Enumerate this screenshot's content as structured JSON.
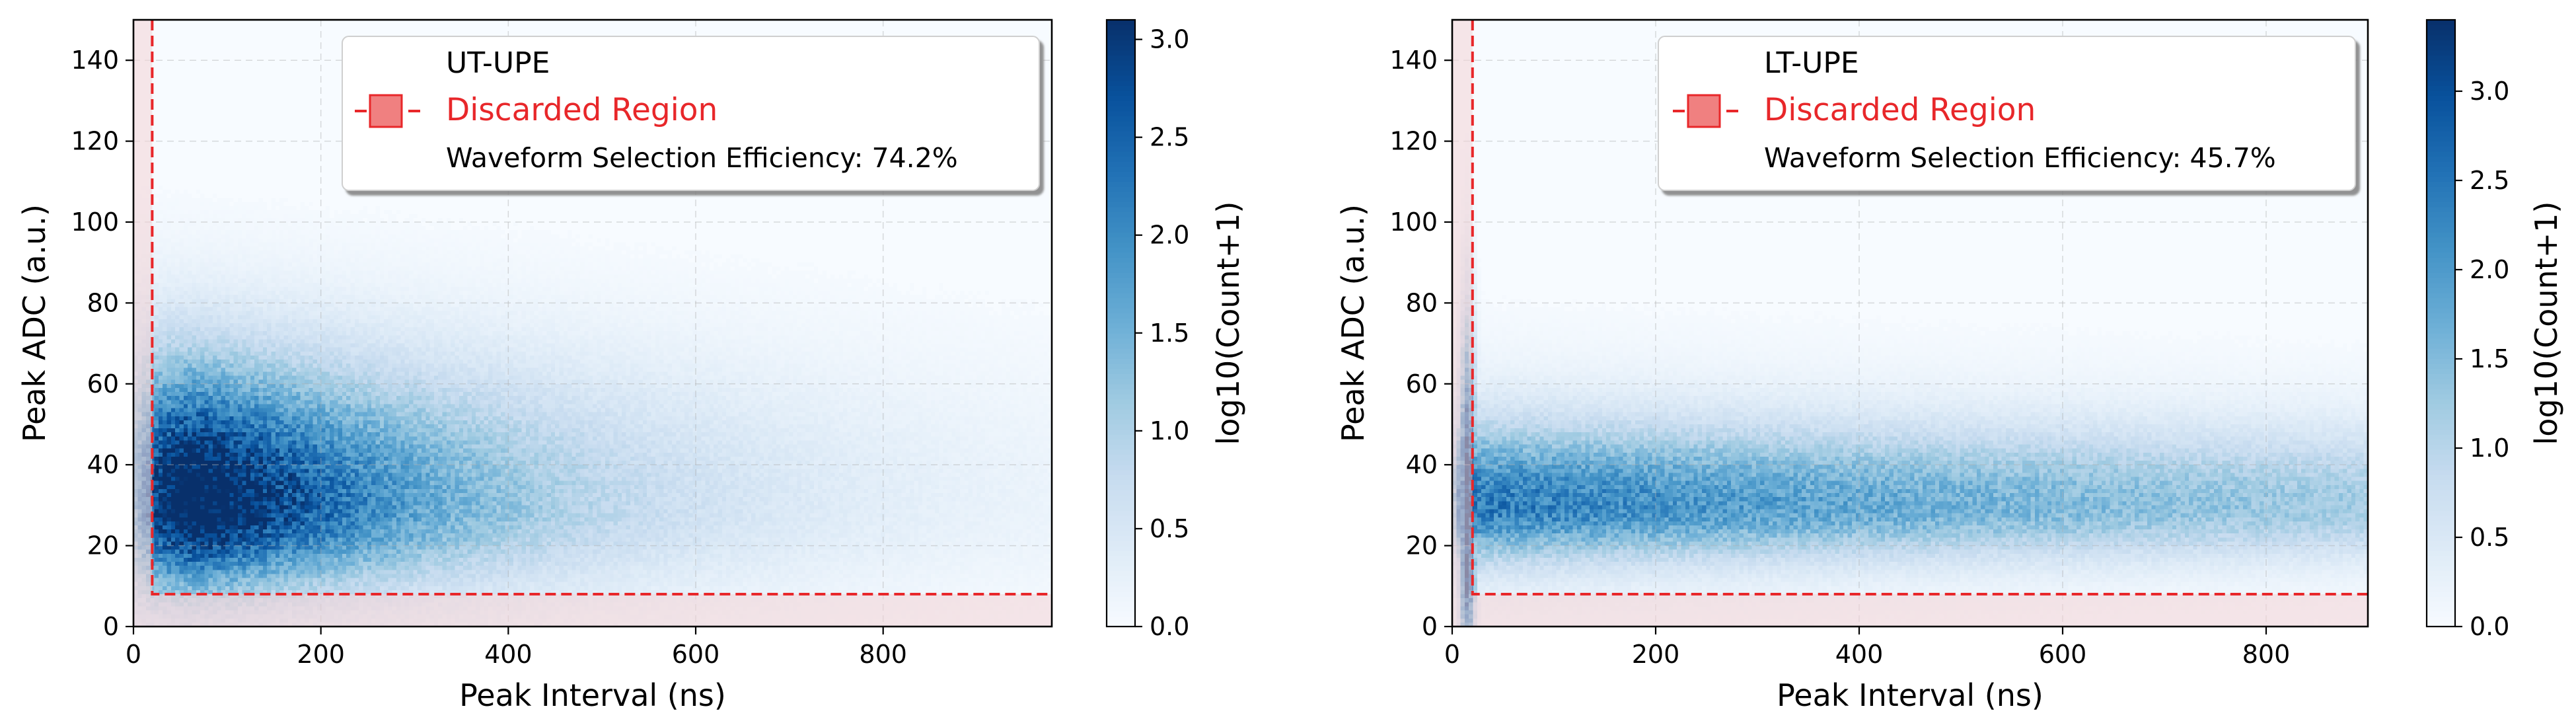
{
  "figure": {
    "background": "#ffffff"
  },
  "colormap": {
    "name": "Blues",
    "stops": [
      "#f7fbff",
      "#deebf7",
      "#c6dbef",
      "#9ecae1",
      "#6baed6",
      "#4292c6",
      "#2171b5",
      "#08519c",
      "#08306b"
    ]
  },
  "chart_data": [
    {
      "type": "heatmap",
      "title": "",
      "xlabel": "Peak Interval (ns)",
      "ylabel": "Peak ADC (a.u.)",
      "xlim": [
        0,
        980
      ],
      "ylim": [
        0,
        150
      ],
      "xticks": [
        "0",
        "200",
        "400",
        "600",
        "800"
      ],
      "xtick_values": [
        0,
        200,
        400,
        600,
        800
      ],
      "yticks": [
        "0",
        "20",
        "40",
        "60",
        "80",
        "100",
        "120",
        "140"
      ],
      "ytick_values": [
        0,
        20,
        40,
        60,
        80,
        100,
        120,
        140
      ],
      "grid": true,
      "colorbar": {
        "label": "log10(Count+1)",
        "range": [
          0,
          3.1
        ],
        "ticks": [
          "0.0",
          "0.5",
          "1.0",
          "1.5",
          "2.0",
          "2.5",
          "3.0"
        ],
        "tick_values": [
          0,
          0.5,
          1.0,
          1.5,
          2.0,
          2.5,
          3.0
        ]
      },
      "cut": {
        "interval_min": 20,
        "adc_min": 8,
        "color": "#e8272a",
        "fill": "#f4d3d6"
      },
      "legend": {
        "position": "upper-right",
        "entries": [
          {
            "label": "UT-UPE",
            "marker": "none",
            "color": "#000000"
          },
          {
            "label": "Discarded Region",
            "marker": "square",
            "color": "#e8272a"
          },
          {
            "label": "Waveform Selection Efficiency: 74.2%",
            "marker": "none",
            "color": "#000000"
          }
        ]
      },
      "density_model": {
        "shape": "broad",
        "core_adc": 30,
        "core_interval": 60,
        "adc_width_low": 13,
        "adc_width_high": 22,
        "decay_ns": 260,
        "max_interval": 980
      }
    },
    {
      "type": "heatmap",
      "title": "",
      "xlabel": "Peak Interval (ns)",
      "ylabel": "Peak ADC (a.u.)",
      "xlim": [
        0,
        900
      ],
      "ylim": [
        0,
        150
      ],
      "xticks": [
        "0",
        "200",
        "400",
        "600",
        "800"
      ],
      "xtick_values": [
        0,
        200,
        400,
        600,
        800
      ],
      "yticks": [
        "0",
        "20",
        "40",
        "60",
        "80",
        "100",
        "120",
        "140"
      ],
      "ytick_values": [
        0,
        20,
        40,
        60,
        80,
        100,
        120,
        140
      ],
      "grid": true,
      "colorbar": {
        "label": "log10(Count+1)",
        "range": [
          0,
          3.4
        ],
        "ticks": [
          "0.0",
          "0.5",
          "1.0",
          "1.5",
          "2.0",
          "2.5",
          "3.0"
        ],
        "tick_values": [
          0,
          0.5,
          1.0,
          1.5,
          2.0,
          2.5,
          3.0
        ]
      },
      "cut": {
        "interval_min": 20,
        "adc_min": 8,
        "color": "#e8272a",
        "fill": "#f4d3d6"
      },
      "legend": {
        "position": "upper-right",
        "entries": [
          {
            "label": "LT-UPE",
            "marker": "none",
            "color": "#000000"
          },
          {
            "label": "Discarded Region",
            "marker": "square",
            "color": "#e8272a"
          },
          {
            "label": "Waveform Selection Efficiency: 45.7%",
            "marker": "none",
            "color": "#000000"
          }
        ]
      },
      "density_model": {
        "shape": "flat-band",
        "core_adc": 30,
        "core_interval": 15,
        "adc_width_low": 9,
        "adc_width_high": 13,
        "decay_ns": 1400,
        "max_interval": 900
      }
    }
  ]
}
